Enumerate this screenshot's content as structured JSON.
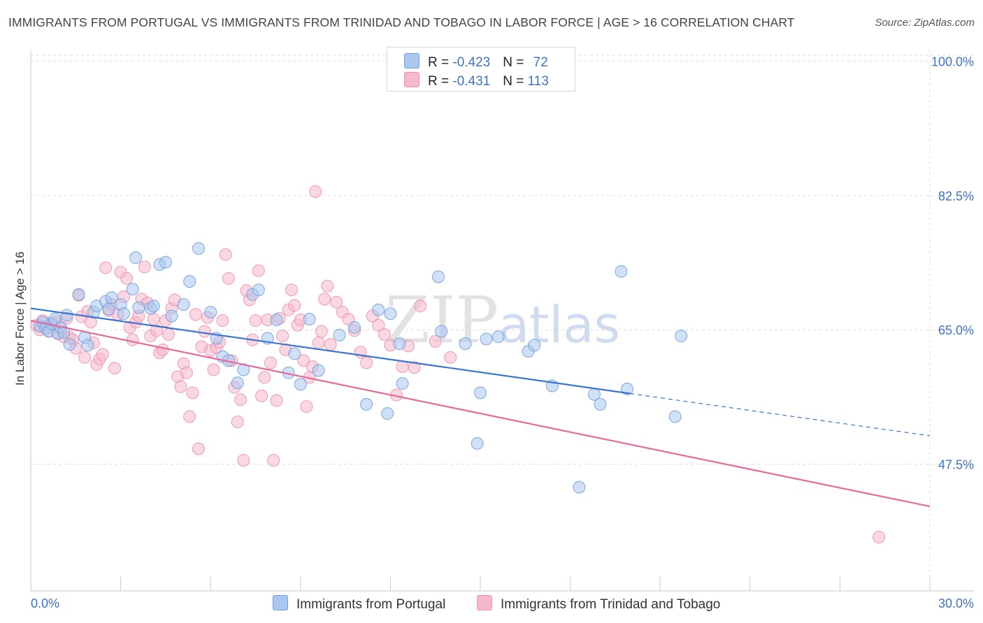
{
  "header": {
    "title": "IMMIGRANTS FROM PORTUGAL VS IMMIGRANTS FROM TRINIDAD AND TOBAGO IN LABOR FORCE | AGE > 16 CORRELATION CHART",
    "source": "Source: ZipAtlas.com"
  },
  "watermark": {
    "zip": "ZIP",
    "atlas": "atlas"
  },
  "legend": {
    "rows": [
      {
        "r_label": "R = ",
        "r_value": "-0.423",
        "n_label": "N = ",
        "n_value": "72"
      },
      {
        "r_label": "R = ",
        "r_value": "-0.431",
        "n_label": "N = ",
        "n_value": "113"
      }
    ]
  },
  "colors": {
    "portugal_fill": "#a9c7ef",
    "portugal_stroke": "#6f9fdc",
    "portugal_line": "#3874d0",
    "tt_fill": "#f6b8cb",
    "tt_stroke": "#ef8fb0",
    "tt_line": "#e5699a",
    "axis_tick_text": "#3c73c8",
    "grid": "#dcdcdc"
  },
  "chart_data": {
    "type": "scatter",
    "xlabel": "",
    "ylabel": "In Labor Force | Age > 16",
    "xlim": [
      0,
      30
    ],
    "ylim": [
      31,
      101.5
    ],
    "x_tick_labels": [
      "0.0%",
      "30.0%"
    ],
    "y_ticks": [
      47.5,
      65.0,
      82.5,
      100.0
    ],
    "y_tick_labels": [
      "47.5%",
      "65.0%",
      "82.5%",
      "100.0%"
    ],
    "grid": true,
    "legend_position": "top-center",
    "series": [
      {
        "name": "Immigrants from Portugal",
        "trend": {
          "x": [
            0.0,
            20.0
          ],
          "y": [
            67.8,
            56.7
          ]
        },
        "trend_dashed": {
          "x": [
            20.0,
            30.0
          ],
          "y": [
            56.7,
            51.2
          ]
        },
        "points": [
          [
            0.3,
            65.5
          ],
          [
            0.4,
            66.0
          ],
          [
            0.5,
            65.2
          ],
          [
            0.6,
            64.8
          ],
          [
            0.7,
            65.8
          ],
          [
            0.8,
            66.4
          ],
          [
            0.9,
            64.5
          ],
          [
            1.0,
            65.3
          ],
          [
            1.1,
            64.7
          ],
          [
            1.2,
            66.9
          ],
          [
            1.3,
            63.1
          ],
          [
            1.6,
            69.6
          ],
          [
            1.8,
            64.0
          ],
          [
            1.9,
            63.0
          ],
          [
            2.1,
            67.3
          ],
          [
            2.2,
            68.1
          ],
          [
            2.5,
            68.7
          ],
          [
            2.6,
            67.7
          ],
          [
            2.7,
            69.2
          ],
          [
            3.0,
            68.3
          ],
          [
            3.1,
            67.1
          ],
          [
            3.4,
            70.3
          ],
          [
            3.5,
            74.4
          ],
          [
            3.6,
            67.9
          ],
          [
            4.0,
            67.8
          ],
          [
            4.1,
            68.1
          ],
          [
            4.3,
            73.5
          ],
          [
            4.5,
            73.8
          ],
          [
            4.7,
            66.8
          ],
          [
            5.1,
            68.3
          ],
          [
            5.3,
            71.3
          ],
          [
            5.6,
            75.6
          ],
          [
            6.0,
            67.3
          ],
          [
            6.2,
            63.9
          ],
          [
            6.4,
            61.5
          ],
          [
            6.6,
            61.0
          ],
          [
            6.9,
            58.1
          ],
          [
            7.1,
            59.8
          ],
          [
            7.4,
            69.6
          ],
          [
            7.6,
            70.2
          ],
          [
            7.9,
            63.9
          ],
          [
            8.2,
            66.3
          ],
          [
            8.6,
            59.4
          ],
          [
            8.8,
            61.9
          ],
          [
            9.0,
            57.9
          ],
          [
            9.3,
            66.4
          ],
          [
            9.6,
            59.7
          ],
          [
            10.3,
            64.3
          ],
          [
            10.8,
            65.3
          ],
          [
            11.2,
            55.3
          ],
          [
            11.6,
            67.6
          ],
          [
            11.9,
            54.1
          ],
          [
            12.0,
            67.1
          ],
          [
            12.3,
            63.2
          ],
          [
            12.4,
            58.0
          ],
          [
            13.6,
            71.9
          ],
          [
            13.7,
            64.8
          ],
          [
            14.5,
            63.2
          ],
          [
            14.9,
            50.2
          ],
          [
            15.0,
            56.8
          ],
          [
            15.2,
            63.8
          ],
          [
            15.6,
            64.1
          ],
          [
            16.6,
            62.2
          ],
          [
            16.8,
            63.0
          ],
          [
            17.4,
            57.7
          ],
          [
            18.3,
            44.5
          ],
          [
            18.8,
            56.6
          ],
          [
            19.0,
            55.3
          ],
          [
            19.7,
            72.6
          ],
          [
            19.9,
            57.3
          ],
          [
            21.5,
            53.7
          ],
          [
            21.7,
            64.2
          ]
        ]
      },
      {
        "name": "Immigrants from Trinidad and Tobago",
        "trend": {
          "x": [
            0.0,
            30.0
          ],
          "y": [
            66.2,
            42.0
          ]
        },
        "points": [
          [
            0.2,
            65.6
          ],
          [
            0.3,
            65.0
          ],
          [
            0.4,
            66.2
          ],
          [
            0.5,
            65.4
          ],
          [
            0.6,
            64.9
          ],
          [
            0.7,
            65.7
          ],
          [
            0.8,
            66.0
          ],
          [
            0.9,
            64.6
          ],
          [
            1.0,
            65.3
          ],
          [
            1.1,
            64.1
          ],
          [
            1.2,
            66.5
          ],
          [
            1.3,
            64.0
          ],
          [
            1.4,
            63.7
          ],
          [
            1.5,
            62.6
          ],
          [
            1.6,
            69.5
          ],
          [
            1.7,
            66.7
          ],
          [
            1.8,
            61.4
          ],
          [
            1.9,
            67.4
          ],
          [
            2.0,
            66.0
          ],
          [
            2.1,
            63.3
          ],
          [
            2.2,
            60.5
          ],
          [
            2.3,
            61.2
          ],
          [
            2.4,
            61.8
          ],
          [
            2.5,
            73.1
          ],
          [
            2.6,
            67.5
          ],
          [
            2.7,
            68.3
          ],
          [
            2.8,
            60.0
          ],
          [
            2.9,
            67.0
          ],
          [
            3.0,
            72.5
          ],
          [
            3.1,
            69.3
          ],
          [
            3.2,
            71.7
          ],
          [
            3.3,
            65.3
          ],
          [
            3.4,
            63.7
          ],
          [
            3.5,
            66.0
          ],
          [
            3.6,
            66.8
          ],
          [
            3.7,
            69.0
          ],
          [
            3.8,
            73.2
          ],
          [
            3.9,
            68.5
          ],
          [
            4.0,
            64.2
          ],
          [
            4.1,
            66.4
          ],
          [
            4.2,
            64.9
          ],
          [
            4.3,
            62.0
          ],
          [
            4.4,
            62.4
          ],
          [
            4.5,
            66.2
          ],
          [
            4.6,
            64.4
          ],
          [
            4.7,
            67.8
          ],
          [
            4.8,
            68.9
          ],
          [
            4.9,
            58.9
          ],
          [
            5.0,
            57.6
          ],
          [
            5.1,
            60.6
          ],
          [
            5.2,
            59.4
          ],
          [
            5.3,
            53.7
          ],
          [
            5.4,
            56.8
          ],
          [
            5.5,
            67.0
          ],
          [
            5.6,
            49.5
          ],
          [
            5.7,
            62.8
          ],
          [
            5.8,
            64.8
          ],
          [
            5.9,
            66.6
          ],
          [
            6.0,
            62.3
          ],
          [
            6.1,
            59.8
          ],
          [
            6.2,
            62.7
          ],
          [
            6.3,
            63.4
          ],
          [
            6.4,
            66.2
          ],
          [
            6.5,
            74.8
          ],
          [
            6.6,
            71.7
          ],
          [
            6.7,
            61.0
          ],
          [
            6.8,
            57.5
          ],
          [
            6.9,
            53.0
          ],
          [
            7.0,
            55.9
          ],
          [
            7.1,
            48.0
          ],
          [
            7.2,
            70.1
          ],
          [
            7.3,
            68.9
          ],
          [
            7.4,
            63.7
          ],
          [
            7.5,
            66.2
          ],
          [
            7.6,
            72.7
          ],
          [
            7.7,
            56.4
          ],
          [
            7.8,
            58.8
          ],
          [
            7.9,
            66.3
          ],
          [
            8.0,
            60.7
          ],
          [
            8.1,
            48.0
          ],
          [
            8.2,
            55.8
          ],
          [
            8.3,
            66.5
          ],
          [
            8.4,
            64.2
          ],
          [
            8.5,
            62.4
          ],
          [
            8.6,
            67.6
          ],
          [
            8.7,
            70.2
          ],
          [
            8.8,
            68.2
          ],
          [
            8.9,
            65.6
          ],
          [
            9.0,
            66.3
          ],
          [
            9.1,
            61.0
          ],
          [
            9.2,
            55.0
          ],
          [
            9.3,
            58.8
          ],
          [
            9.4,
            60.2
          ],
          [
            9.5,
            83.0
          ],
          [
            9.6,
            63.3
          ],
          [
            9.7,
            64.8
          ],
          [
            9.8,
            69.0
          ],
          [
            9.9,
            70.7
          ],
          [
            10.0,
            63.1
          ],
          [
            10.2,
            68.6
          ],
          [
            10.4,
            67.3
          ],
          [
            10.6,
            66.4
          ],
          [
            10.8,
            64.9
          ],
          [
            11.0,
            62.1
          ],
          [
            11.2,
            60.7
          ],
          [
            11.4,
            66.8
          ],
          [
            11.6,
            65.6
          ],
          [
            11.8,
            64.4
          ],
          [
            12.0,
            63.0
          ],
          [
            12.2,
            56.5
          ],
          [
            12.4,
            60.2
          ],
          [
            12.6,
            62.9
          ],
          [
            12.8,
            60.1
          ],
          [
            13.0,
            68.1
          ],
          [
            13.5,
            63.5
          ],
          [
            14.0,
            61.4
          ],
          [
            28.3,
            38.0
          ]
        ]
      }
    ]
  },
  "bottom_legend": {
    "items": [
      "Immigrants from Portugal",
      "Immigrants from Trinidad and Tobago"
    ]
  }
}
